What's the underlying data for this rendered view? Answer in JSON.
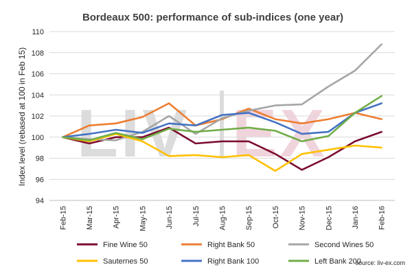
{
  "chart_data": {
    "type": "line",
    "title": "Bordeaux 500: performance of sub-indices (one year)",
    "xlabel": "",
    "ylabel": "Index level (rebased at 100 in Feb 15)",
    "ylim": [
      94,
      110
    ],
    "yticks": [
      94,
      96,
      98,
      100,
      102,
      104,
      106,
      108,
      110
    ],
    "grid": true,
    "legend_position": "bottom",
    "categories": [
      "Feb-15",
      "Mar-15",
      "Apr-15",
      "May-15",
      "Jun-15",
      "Jul-15",
      "Aug-15",
      "Sep-15",
      "Oct-15",
      "Nov-15",
      "Dec-15",
      "Jan-16",
      "Feb-16"
    ],
    "series": [
      {
        "name": "Fine Wine 50",
        "color": "#7b0c2e",
        "values": [
          100.0,
          99.4,
          100.0,
          100.0,
          100.9,
          99.4,
          99.6,
          99.6,
          98.4,
          96.9,
          98.1,
          99.6,
          100.5
        ]
      },
      {
        "name": "Right Bank 50",
        "color": "#ed7d31",
        "values": [
          100.0,
          101.1,
          101.3,
          101.9,
          103.2,
          101.1,
          101.7,
          102.7,
          101.7,
          101.3,
          101.7,
          102.3,
          101.7
        ]
      },
      {
        "name": "Second Wines 50",
        "color": "#a5a5a5",
        "values": [
          100.0,
          99.8,
          99.7,
          100.5,
          102.0,
          100.3,
          101.8,
          102.5,
          103.0,
          103.1,
          104.8,
          106.3,
          108.8
        ]
      },
      {
        "name": "Sauternes 50",
        "color": "#ffc000",
        "values": [
          100.0,
          99.6,
          100.3,
          99.6,
          98.2,
          98.3,
          98.1,
          98.3,
          96.8,
          98.4,
          98.8,
          99.2,
          99.0
        ]
      },
      {
        "name": "Right Bank 100",
        "color": "#4472c4",
        "values": [
          100.0,
          100.3,
          100.7,
          100.4,
          101.3,
          101.1,
          102.1,
          102.3,
          101.4,
          100.3,
          100.5,
          102.3,
          103.2
        ]
      },
      {
        "name": "Left Bank 200",
        "color": "#70ad47",
        "values": [
          100.0,
          99.7,
          100.4,
          99.8,
          100.8,
          100.5,
          100.7,
          100.9,
          100.6,
          99.6,
          100.1,
          102.3,
          103.9
        ]
      }
    ],
    "watermark": "LIV-EX",
    "source": "source: liv-ex.com"
  }
}
